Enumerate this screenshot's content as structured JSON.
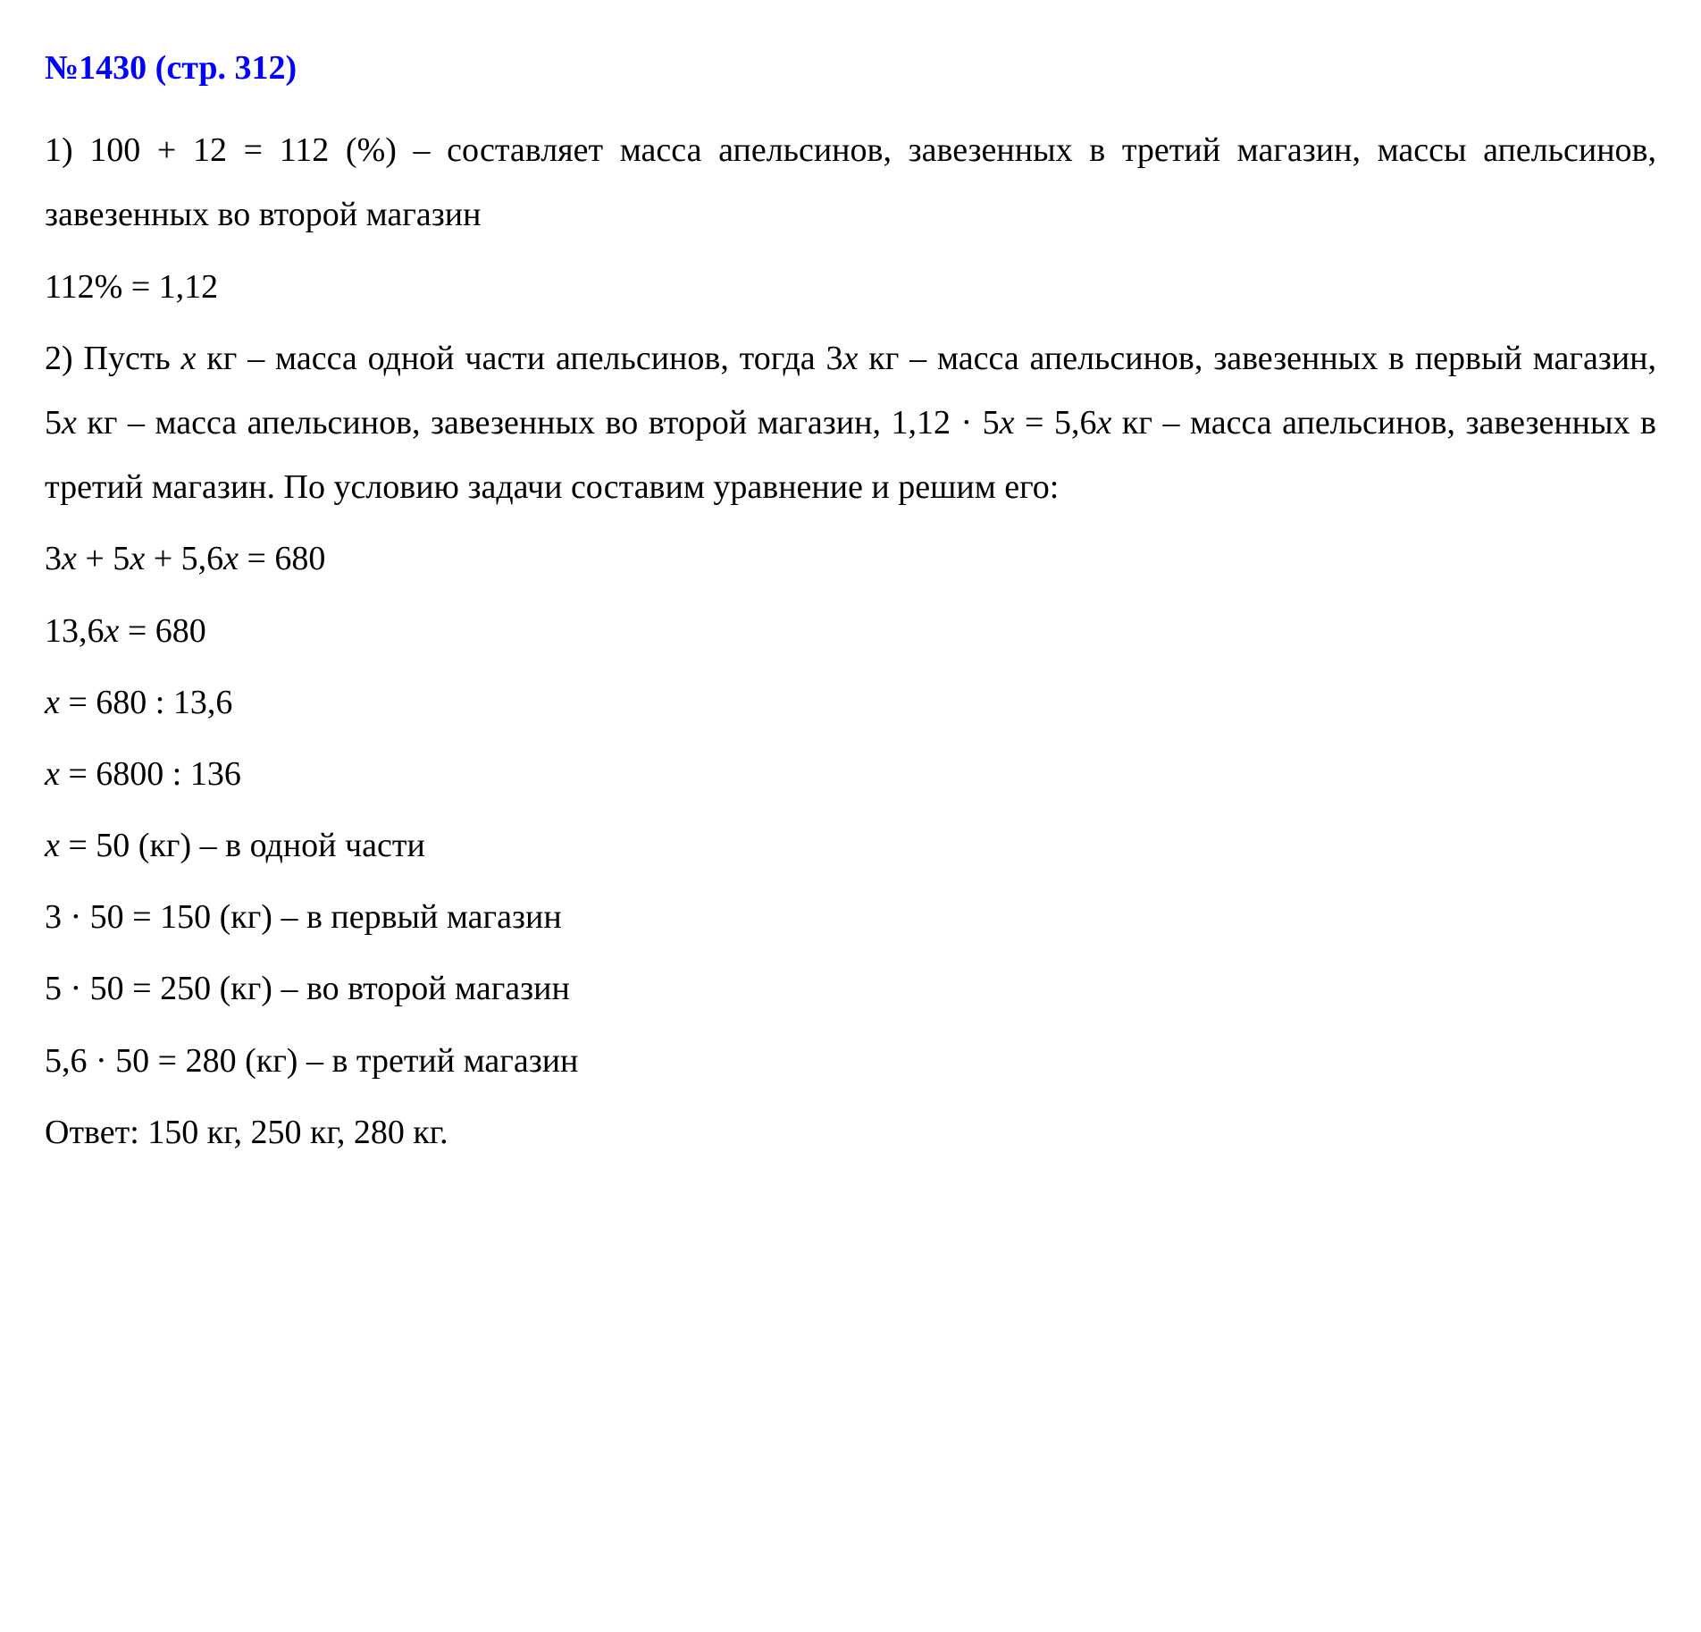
{
  "title": "№1430 (стр. 312)",
  "lines": {
    "l1": "1) 100 + 12 = 112 (%) – составляет масса апельсинов, завезенных в третий магазин, массы апельсинов, завезенных во второй магазин",
    "l2": "112% = 1,12",
    "l3_p1": "2) Пусть ",
    "l3_x": "x",
    "l3_p2": " кг – масса одной части апельсинов, тогда 3",
    "l3_x2": "x",
    "l3_p3": " кг – масса апельсинов, завезенных в первый магазин, 5",
    "l3_x3": "x",
    "l3_p4": " кг – масса апельсинов, завезенных во второй магазин, 1,12 · 5",
    "l3_x4": "x",
    "l3_p5": " = 5,6",
    "l3_x5": "x",
    "l3_p6": " кг – масса апельсинов, завезенных в третий магазин. По условию задачи составим уравнение и решим его:",
    "l4_p1": "3",
    "l4_x1": "x",
    "l4_p2": " + 5",
    "l4_x2": "x",
    "l4_p3": " + 5,6",
    "l4_x3": "x",
    "l4_p4": " = 680",
    "l5_p1": "13,6",
    "l5_x": "x",
    "l5_p2": " = 680",
    "l6_x": "x",
    "l6_p": " = 680 : 13,6",
    "l7_x": "x",
    "l7_p": " = 6800 : 136",
    "l8_x": "x",
    "l8_p": " = 50 (кг) – в одной части",
    "l9": "3 · 50 = 150 (кг) – в первый магазин",
    "l10": "5 · 50 = 250 (кг) – во второй магазин",
    "l11": "5,6 · 50 = 280 (кг) – в третий магазин",
    "l12": "Ответ: 150 кг, 250 кг, 280 кг."
  },
  "styling": {
    "title_color": "#0000ff",
    "text_color": "#000000",
    "background_color": "#ffffff",
    "font_family": "Times New Roman",
    "font_size": 38,
    "line_height": 1.9
  }
}
